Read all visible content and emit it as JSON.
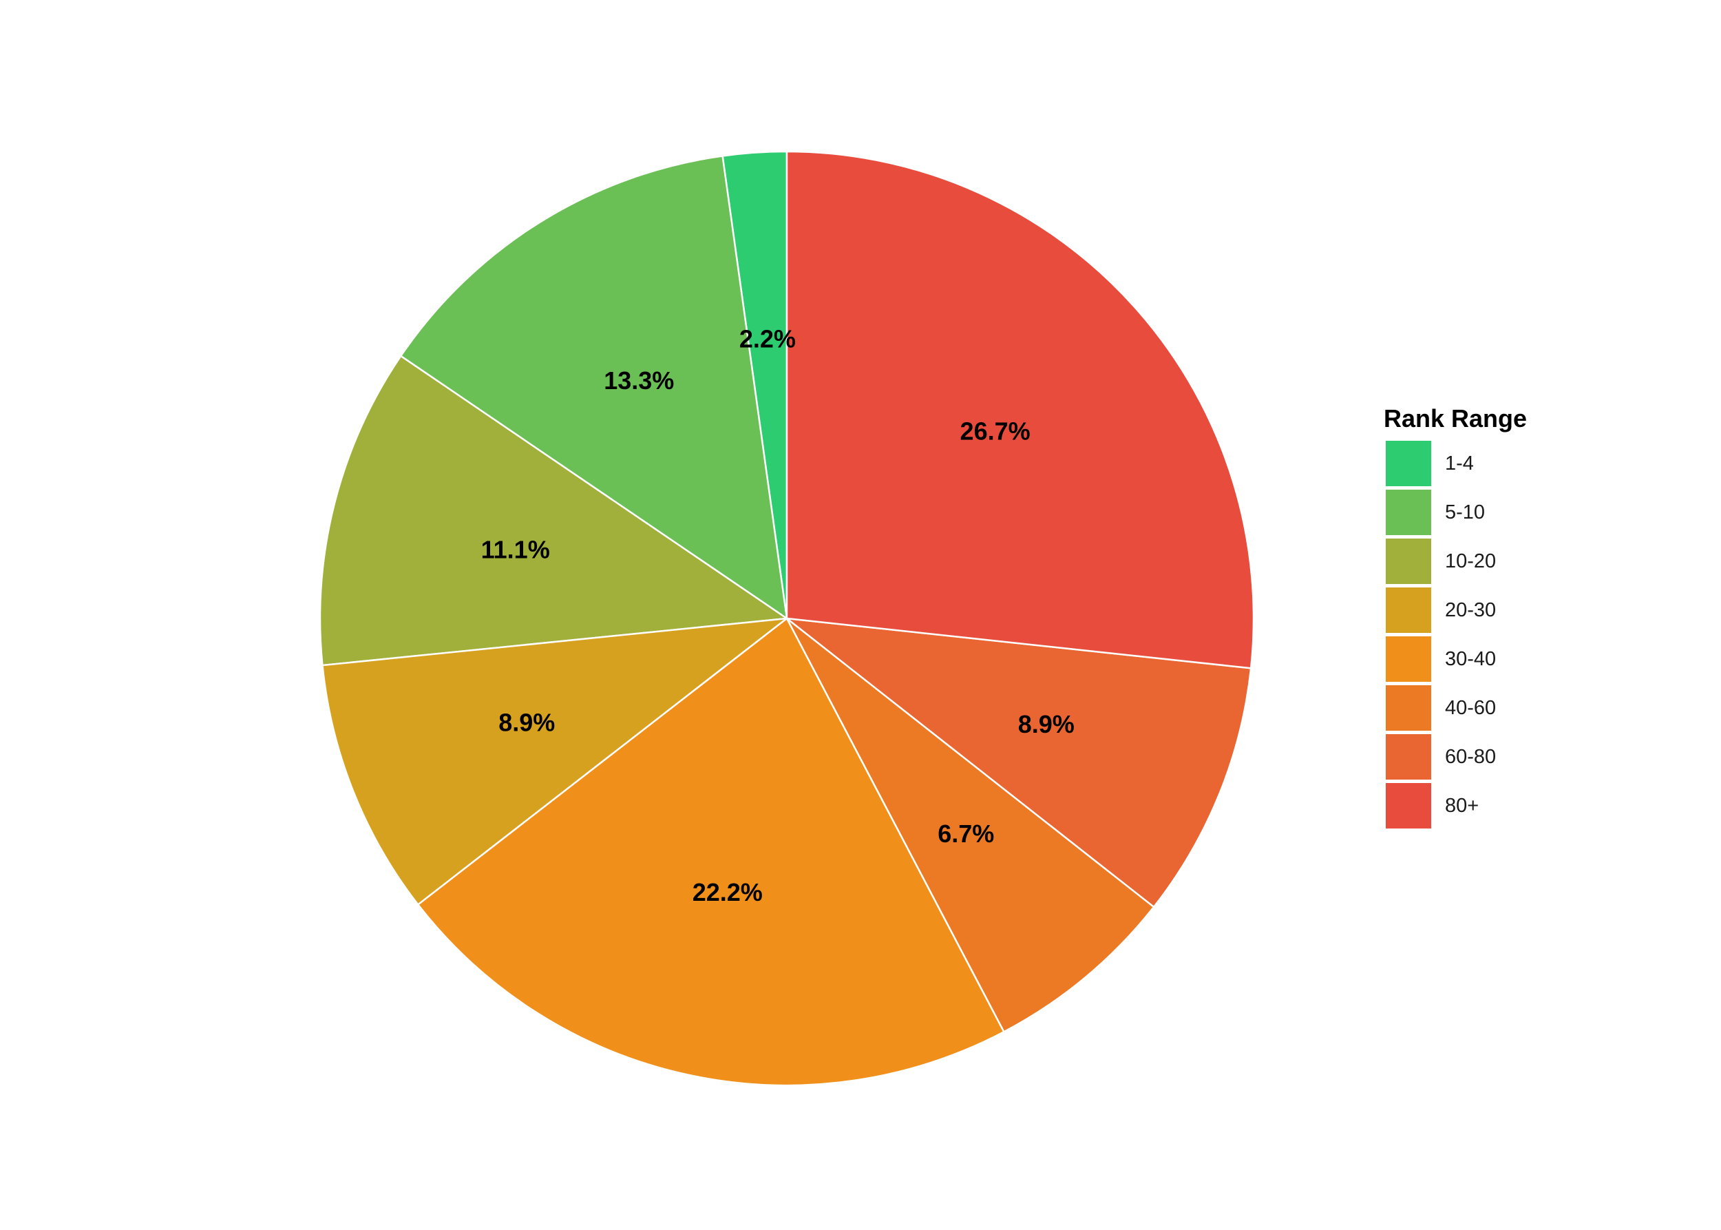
{
  "chart_data": {
    "type": "pie",
    "categories": [
      "1-4",
      "5-10",
      "10-20",
      "20-30",
      "30-40",
      "40-60",
      "60-80",
      "80+"
    ],
    "values": [
      2.2,
      13.3,
      11.1,
      8.9,
      22.2,
      6.7,
      8.9,
      26.7
    ],
    "data_labels": [
      "2.2%",
      "13.3%",
      "11.1%",
      "8.9%",
      "22.2%",
      "6.7%",
      "8.9%",
      "26.7%"
    ],
    "colors": [
      "#2ecc71",
      "#6abf55",
      "#a0b03a",
      "#d6a11f",
      "#f0901a",
      "#ec7a24",
      "#e96531",
      "#e74c3c"
    ],
    "start_angle": "12 o'clock",
    "direction": "counter-clockwise",
    "slice_border_color": "#ffffff",
    "legend": {
      "title": "Rank Range",
      "placement": "right"
    }
  }
}
